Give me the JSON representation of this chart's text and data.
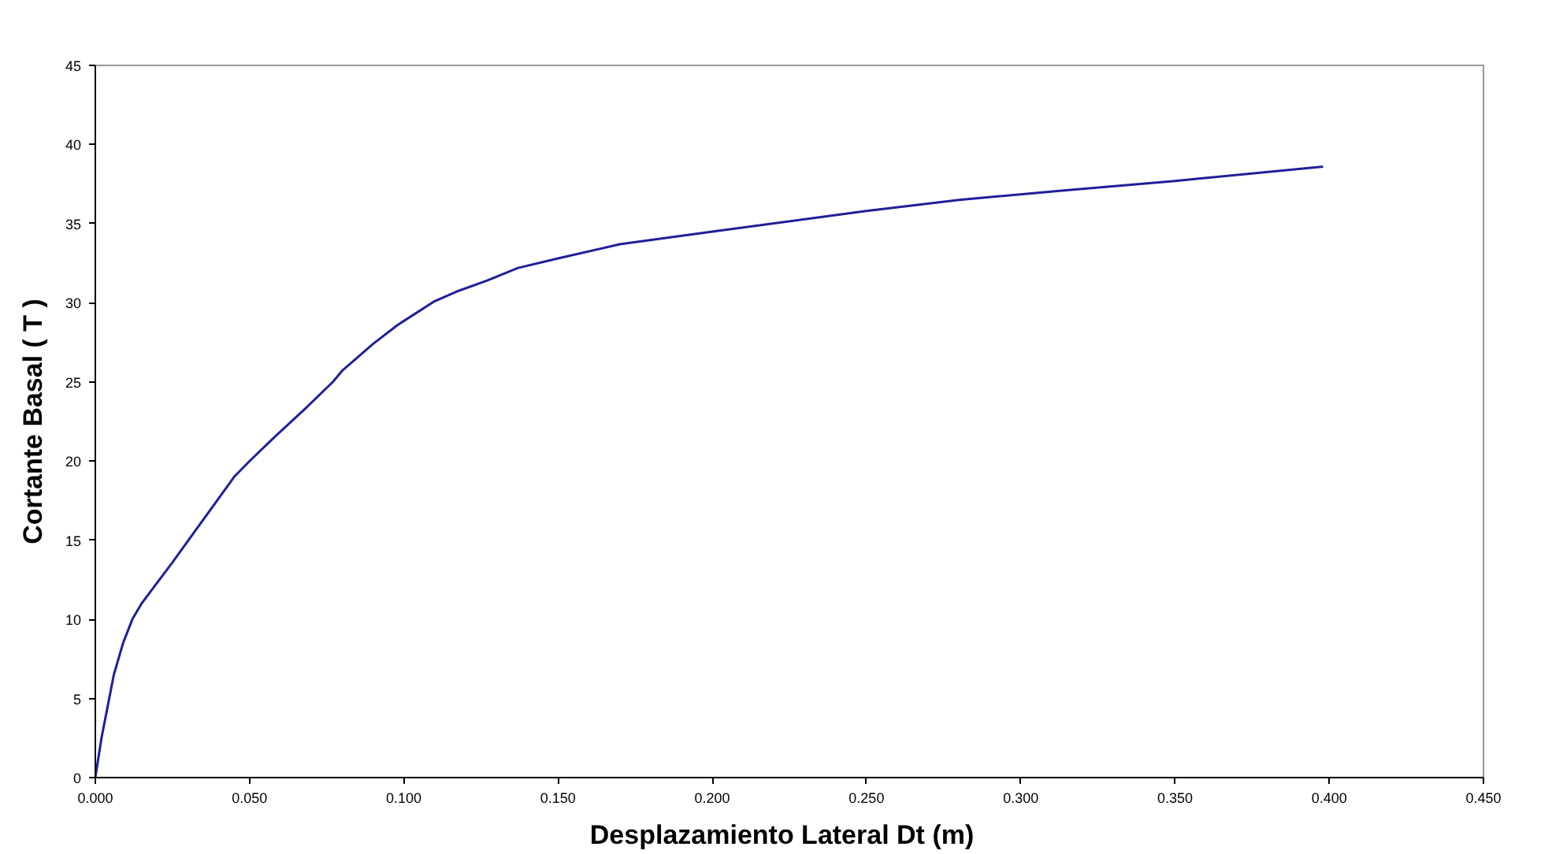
{
  "chart_data": {
    "type": "line",
    "xlabel": "Desplazamiento Lateral  Dt  (m)",
    "ylabel": "Cortante Basal ( T )",
    "x": [
      0,
      0.002,
      0.004,
      0.006,
      0.009,
      0.012,
      0.015,
      0.02,
      0.025,
      0.035,
      0.045,
      0.05,
      0.058,
      0.068,
      0.077,
      0.08,
      0.09,
      0.098,
      0.11,
      0.117,
      0.127,
      0.137,
      0.15,
      0.17,
      0.2,
      0.25,
      0.28,
      0.314,
      0.35,
      0.398
    ],
    "series": [
      {
        "color": "#1f1f9a",
        "values": [
          0,
          2.5,
          4.5,
          6.5,
          8.5,
          10,
          11,
          12.3,
          13.6,
          16.3,
          19,
          20,
          21.5,
          23.3,
          25,
          25.7,
          27.4,
          28.6,
          30.1,
          30.7,
          31.4,
          32.2,
          32.8,
          33.7,
          34.5,
          35.8,
          36.5,
          37.1,
          37.7,
          38.6
        ]
      }
    ],
    "xlim": [
      0,
      0.45
    ],
    "ylim": [
      0,
      45
    ],
    "xticks": [
      {
        "value": 0,
        "label": "0.000"
      },
      {
        "value": 0.05,
        "label": "0.050"
      },
      {
        "value": 0.1,
        "label": "0.100"
      },
      {
        "value": 0.15,
        "label": "0.150"
      },
      {
        "value": 0.2,
        "label": "0.200"
      },
      {
        "value": 0.25,
        "label": "0.250"
      },
      {
        "value": 0.3,
        "label": "0.300"
      },
      {
        "value": 0.35,
        "label": "0.350"
      },
      {
        "value": 0.4,
        "label": "0.400"
      },
      {
        "value": 0.45,
        "label": "0.450"
      }
    ],
    "yticks": [
      0,
      5,
      10,
      15,
      20,
      25,
      30,
      35,
      40,
      45
    ],
    "grid": false,
    "marker": "none",
    "line_style": "solid"
  }
}
